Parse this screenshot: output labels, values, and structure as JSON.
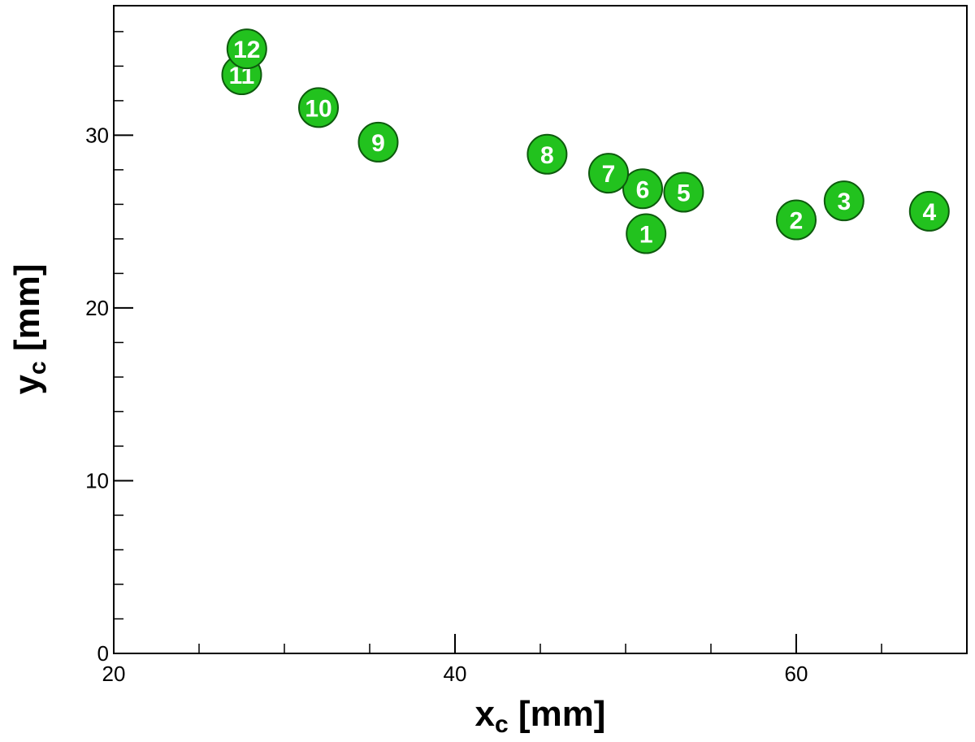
{
  "chart_data": {
    "type": "scatter",
    "title": "",
    "xlabel": {
      "main": "x",
      "sub": "c",
      "unit": " [mm]"
    },
    "ylabel": {
      "main": "y",
      "sub": "c",
      "unit": " [mm]"
    },
    "xlim": [
      20,
      70
    ],
    "ylim": [
      0,
      37.5
    ],
    "x_major_ticks": [
      20,
      40,
      60
    ],
    "x_minor_ticks": [
      25,
      30,
      35,
      45,
      50,
      55,
      65
    ],
    "y_major_ticks": [
      0,
      10,
      20,
      30
    ],
    "y_minor_ticks": [
      2,
      4,
      6,
      8,
      12,
      14,
      16,
      18,
      22,
      24,
      26,
      28,
      32,
      34,
      36
    ],
    "x_tick_labels": [
      "20",
      "40",
      "60"
    ],
    "y_tick_labels": [
      "0",
      "10",
      "20",
      "30"
    ],
    "grid": false,
    "marker_color": "#22c21e",
    "marker_edge_color": "#0d5a0d",
    "label_color": "#ffffff",
    "points": [
      {
        "label": "1",
        "x": 51.2,
        "y": 24.3
      },
      {
        "label": "2",
        "x": 60.0,
        "y": 25.1
      },
      {
        "label": "3",
        "x": 62.8,
        "y": 26.2
      },
      {
        "label": "4",
        "x": 67.8,
        "y": 25.6
      },
      {
        "label": "5",
        "x": 53.4,
        "y": 26.7
      },
      {
        "label": "6",
        "x": 51.0,
        "y": 26.9
      },
      {
        "label": "7",
        "x": 49.0,
        "y": 27.8
      },
      {
        "label": "8",
        "x": 45.4,
        "y": 28.9
      },
      {
        "label": "9",
        "x": 35.5,
        "y": 29.6
      },
      {
        "label": "10",
        "x": 32.0,
        "y": 31.6
      },
      {
        "label": "11",
        "x": 27.5,
        "y": 33.5
      },
      {
        "label": "12",
        "x": 27.8,
        "y": 35.0
      }
    ]
  }
}
